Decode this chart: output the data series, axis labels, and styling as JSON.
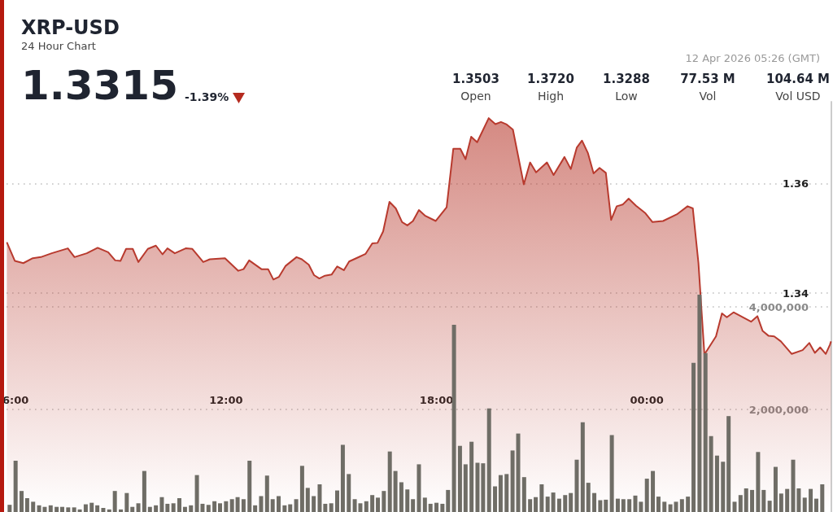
{
  "chart_data": {
    "type": "area",
    "title": "XRP-USD",
    "subtitle": "24 Hour Chart",
    "annotations": [
      "1.3315",
      "-1.39%",
      "1.3503",
      "Open",
      "1.3720",
      "High",
      "1.3288",
      "Low",
      "77.53 M",
      "Vol",
      "104.64 M",
      "Vol USD",
      "12 Apr 2026 05:26 (GMT)"
    ],
    "xlim": [
      5.75,
      29.26
    ],
    "xticks": [
      {
        "value": 6,
        "label": "6:00"
      },
      {
        "value": 12,
        "label": "12:00"
      },
      {
        "value": 18,
        "label": "18:00"
      },
      {
        "value": 24,
        "label": "00:00"
      }
    ],
    "ylim": [
      1.3,
      1.375
    ],
    "yticks": [
      1.34,
      1.36
    ],
    "y2lim": [
      0,
      8000000
    ],
    "y2ticks": [
      {
        "value": 2000000,
        "label": "2,000,000"
      },
      {
        "value": 4000000,
        "label": "4,000,000"
      }
    ],
    "grid": "y",
    "series": [
      {
        "type": "bar",
        "axis": "y2",
        "color": "#6f6d66",
        "x": [
          5.83,
          6,
          6.17,
          6.33,
          6.5,
          6.67,
          6.83,
          7,
          7.17,
          7.33,
          7.5,
          7.67,
          7.83,
          8,
          8.17,
          8.33,
          8.5,
          8.67,
          8.83,
          9,
          9.17,
          9.33,
          9.5,
          9.67,
          9.83,
          10,
          10.17,
          10.33,
          10.5,
          10.67,
          10.83,
          11,
          11.17,
          11.33,
          11.5,
          11.67,
          11.83,
          12,
          12.17,
          12.33,
          12.5,
          12.67,
          12.83,
          13,
          13.17,
          13.33,
          13.5,
          13.67,
          13.83,
          14,
          14.17,
          14.33,
          14.5,
          14.67,
          14.83,
          15,
          15.17,
          15.33,
          15.5,
          15.67,
          15.83,
          16,
          16.17,
          16.33,
          16.5,
          16.67,
          16.83,
          17,
          17.17,
          17.33,
          17.5,
          17.67,
          17.83,
          18,
          18.17,
          18.33,
          18.5,
          18.67,
          18.83,
          19,
          19.17,
          19.33,
          19.5,
          19.67,
          19.83,
          20,
          20.17,
          20.33,
          20.5,
          20.67,
          20.83,
          21,
          21.17,
          21.33,
          21.5,
          21.67,
          21.83,
          22,
          22.17,
          22.33,
          22.5,
          22.67,
          22.83,
          23,
          23.17,
          23.33,
          23.5,
          23.67,
          23.83,
          24,
          24.17,
          24.33,
          24.5,
          24.67,
          24.83,
          25,
          25.17,
          25.33,
          25.5,
          25.67,
          25.83,
          26,
          26.17,
          26.33,
          26.5,
          26.67,
          26.83,
          27,
          27.17,
          27.33,
          27.5,
          27.67,
          27.83,
          28,
          28.17,
          28.33,
          28.5,
          28.67,
          28.83,
          29
        ],
        "values": [
          140000,
          1000000,
          410000,
          270000,
          200000,
          130000,
          100000,
          130000,
          100000,
          100000,
          90000,
          90000,
          50000,
          150000,
          180000,
          130000,
          80000,
          50000,
          410000,
          50000,
          370000,
          100000,
          170000,
          800000,
          100000,
          130000,
          290000,
          160000,
          170000,
          270000,
          100000,
          130000,
          720000,
          160000,
          140000,
          210000,
          170000,
          210000,
          250000,
          290000,
          250000,
          1000000,
          130000,
          310000,
          710000,
          250000,
          310000,
          130000,
          150000,
          250000,
          900000,
          470000,
          310000,
          540000,
          160000,
          170000,
          420000,
          1310000,
          740000,
          250000,
          170000,
          210000,
          330000,
          280000,
          410000,
          1180000,
          800000,
          580000,
          440000,
          250000,
          930000,
          280000,
          160000,
          180000,
          160000,
          430000,
          3650000,
          1290000,
          930000,
          1370000,
          960000,
          950000,
          2020000,
          500000,
          720000,
          740000,
          1200000,
          1530000,
          680000,
          250000,
          290000,
          540000,
          300000,
          380000,
          260000,
          330000,
          370000,
          1020000,
          1750000,
          570000,
          370000,
          230000,
          240000,
          1500000,
          260000,
          250000,
          250000,
          320000,
          200000,
          650000,
          800000,
          300000,
          200000,
          150000,
          200000,
          250000,
          300000,
          2910000,
          4240000,
          3100000,
          1480000,
          1100000,
          980000,
          1870000,
          200000,
          330000,
          460000,
          430000,
          1170000,
          430000,
          220000,
          880000,
          360000,
          450000,
          1020000,
          460000,
          280000,
          450000,
          260000,
          540000
        ]
      },
      {
        "color": "#b83a2e",
        "x": [
          5.75,
          5.98,
          6.22,
          6.49,
          6.72,
          7.03,
          7.49,
          7.68,
          8.03,
          8.34,
          8.64,
          8.84,
          8.99,
          9.15,
          9.34,
          9.5,
          9.77,
          10,
          10.19,
          10.33,
          10.54,
          10.85,
          11.04,
          11.35,
          11.54,
          11.97,
          12.35,
          12.5,
          12.66,
          13.01,
          13.2,
          13.35,
          13.51,
          13.7,
          14.01,
          14.16,
          14.36,
          14.51,
          14.66,
          14.82,
          15.01,
          15.17,
          15.36,
          15.51,
          15.75,
          15.98,
          16.17,
          16.32,
          16.48,
          16.66,
          16.84,
          17.02,
          17.17,
          17.33,
          17.5,
          17.67,
          17.98,
          18.29,
          18.48,
          18.68,
          18.83,
          18.99,
          19.16,
          19.49,
          19.68,
          19.84,
          19.99,
          20.18,
          20.49,
          20.67,
          20.84,
          21.15,
          21.34,
          21.65,
          21.83,
          22,
          22.15,
          22.32,
          22.48,
          22.65,
          22.83,
          22.98,
          23.14,
          23.31,
          23.48,
          23.69,
          23.96,
          24.16,
          24.46,
          24.85,
          25.16,
          25.31,
          25.47,
          25.64,
          25.97,
          26.14,
          26.28,
          26.47,
          26.97,
          27.15,
          27.3,
          27.47,
          27.63,
          27.82,
          28.13,
          28.44,
          28.63,
          28.79,
          28.94,
          29.1,
          29.22,
          29.25
        ],
        "values": [
          1.3493,
          1.3459,
          1.3455,
          1.3464,
          1.3466,
          1.3473,
          1.3482,
          1.3466,
          1.3473,
          1.3483,
          1.3475,
          1.346,
          1.3459,
          1.3481,
          1.3481,
          1.3457,
          1.3481,
          1.3487,
          1.3471,
          1.3482,
          1.3473,
          1.3482,
          1.3481,
          1.3457,
          1.3462,
          1.3464,
          1.3441,
          1.3444,
          1.346,
          1.3444,
          1.3444,
          1.3425,
          1.343,
          1.345,
          1.3466,
          1.3462,
          1.3452,
          1.3433,
          1.3427,
          1.3432,
          1.3434,
          1.3449,
          1.3442,
          1.3458,
          1.3465,
          1.3472,
          1.3491,
          1.3492,
          1.3513,
          1.3567,
          1.3555,
          1.353,
          1.3524,
          1.3532,
          1.3552,
          1.3542,
          1.3532,
          1.3557,
          1.3664,
          1.3664,
          1.3645,
          1.3686,
          1.3676,
          1.372,
          1.3709,
          1.3713,
          1.3709,
          1.3699,
          1.3599,
          1.3639,
          1.3621,
          1.3639,
          1.3616,
          1.3649,
          1.3627,
          1.3666,
          1.3679,
          1.3656,
          1.3619,
          1.3629,
          1.362,
          1.3534,
          1.3559,
          1.3562,
          1.3573,
          1.356,
          1.3546,
          1.353,
          1.3532,
          1.3544,
          1.3559,
          1.3555,
          1.3455,
          1.3288,
          1.3321,
          1.3363,
          1.3356,
          1.3365,
          1.3348,
          1.3358,
          1.3331,
          1.3322,
          1.3321,
          1.3312,
          1.3289,
          1.3296,
          1.3309,
          1.3291,
          1.3301,
          1.3289,
          1.3306,
          1.3312
        ]
      }
    ]
  }
}
